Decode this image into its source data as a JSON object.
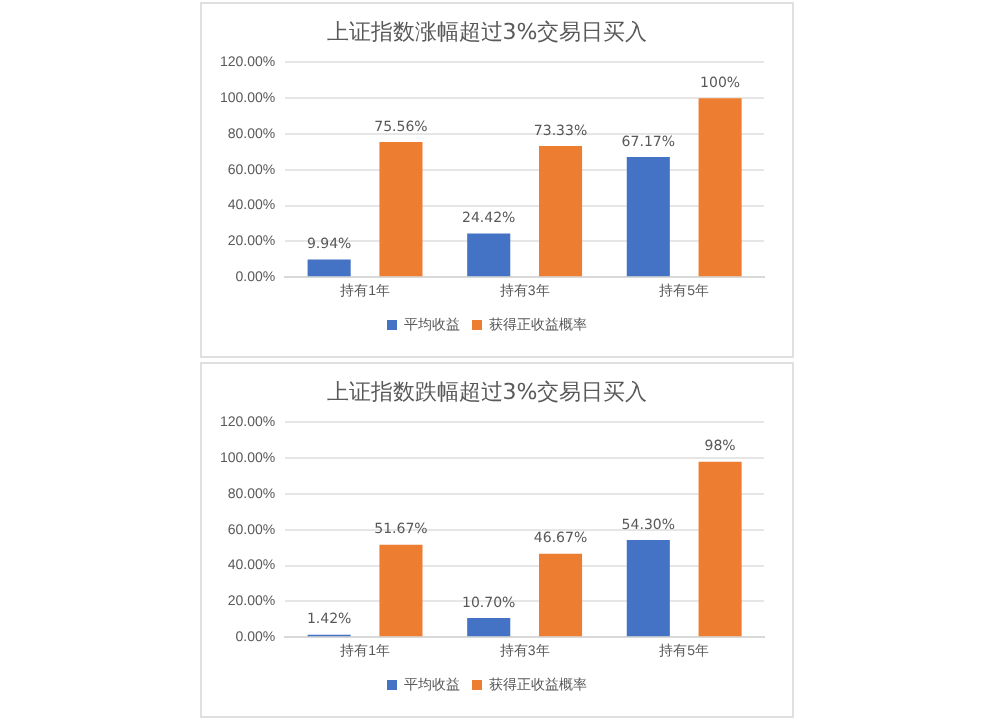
{
  "chart_data": [
    {
      "type": "bar",
      "title": "上证指数涨幅超过3%交易日买入",
      "categories": [
        "持有1年",
        "持有3年",
        "持有5年"
      ],
      "series": [
        {
          "name": "平均收益",
          "color": "#4472c4",
          "values": [
            9.94,
            24.42,
            67.17
          ],
          "value_labels": [
            "9.94%",
            "24.42%",
            "67.17%"
          ]
        },
        {
          "name": "获得正收益概率",
          "color": "#ed7d31",
          "values": [
            75.56,
            73.33,
            100
          ],
          "value_labels": [
            "75.56%",
            "73.33%",
            "100%"
          ]
        }
      ],
      "ylim": [
        0,
        120
      ],
      "yticks": [
        {
          "value": 0,
          "label": "0.00%"
        },
        {
          "value": 20,
          "label": "20.00%"
        },
        {
          "value": 40,
          "label": "40.00%"
        },
        {
          "value": 60,
          "label": "60.00%"
        },
        {
          "value": 80,
          "label": "80.00%"
        },
        {
          "value": 100,
          "label": "100.00%"
        },
        {
          "value": 120,
          "label": "120.00%"
        }
      ],
      "grid": "y",
      "legend": "bottom"
    },
    {
      "type": "bar",
      "title": "上证指数跌幅超过3%交易日买入",
      "categories": [
        "持有1年",
        "持有3年",
        "持有5年"
      ],
      "series": [
        {
          "name": "平均收益",
          "color": "#4472c4",
          "values": [
            1.42,
            10.7,
            54.3
          ],
          "value_labels": [
            "1.42%",
            "10.70%",
            "54.30%"
          ]
        },
        {
          "name": "获得正收益概率",
          "color": "#ed7d31",
          "values": [
            51.67,
            46.67,
            98
          ],
          "value_labels": [
            "51.67%",
            "46.67%",
            "98%"
          ]
        }
      ],
      "ylim": [
        0,
        120
      ],
      "yticks": [
        {
          "value": 0,
          "label": "0.00%"
        },
        {
          "value": 20,
          "label": "20.00%"
        },
        {
          "value": 40,
          "label": "40.00%"
        },
        {
          "value": 60,
          "label": "60.00%"
        },
        {
          "value": 80,
          "label": "80.00%"
        },
        {
          "value": 100,
          "label": "100.00%"
        },
        {
          "value": 120,
          "label": "120.00%"
        }
      ],
      "grid": "y",
      "legend": "bottom"
    }
  ]
}
